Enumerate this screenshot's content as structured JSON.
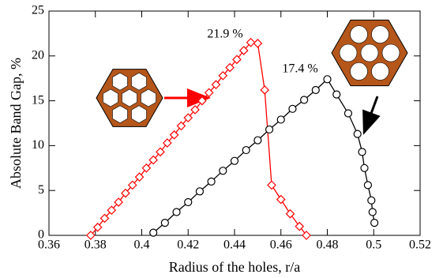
{
  "chart_data": {
    "type": "line",
    "xlabel": "Radius of the holes,  r/a",
    "ylabel": "Absolute Band Gap,  %",
    "xlim": [
      0.36,
      0.52
    ],
    "xticks": [
      0.36,
      0.38,
      0.4,
      0.42,
      0.44,
      0.46,
      0.48,
      0.5,
      0.52
    ],
    "ylim": [
      0,
      25
    ],
    "yticks": [
      0,
      5,
      10,
      15,
      20,
      25
    ],
    "series": [
      {
        "color": "#ff0000",
        "marker": "diamond",
        "x": [
          0.378,
          0.381,
          0.384,
          0.387,
          0.39,
          0.393,
          0.396,
          0.399,
          0.402,
          0.405,
          0.408,
          0.411,
          0.414,
          0.417,
          0.42,
          0.423,
          0.426,
          0.429,
          0.432,
          0.435,
          0.438,
          0.441,
          0.444,
          0.447,
          0.45,
          0.453,
          0.456,
          0.46,
          0.464,
          0.468,
          0.471
        ],
        "values": [
          0,
          0.9,
          1.9,
          2.8,
          3.7,
          4.7,
          5.6,
          6.5,
          7.5,
          8.4,
          9.3,
          10.3,
          11.2,
          12.2,
          13.1,
          14.0,
          15.0,
          15.9,
          16.8,
          17.8,
          18.7,
          19.6,
          20.6,
          21.5,
          21.4,
          16.2,
          5.6,
          4.0,
          2.4,
          1.0,
          0
        ]
      },
      {
        "color": "#000000",
        "marker": "circle",
        "x": [
          0.405,
          0.41,
          0.415,
          0.42,
          0.425,
          0.43,
          0.435,
          0.44,
          0.445,
          0.45,
          0.455,
          0.46,
          0.465,
          0.47,
          0.475,
          0.48,
          0.484,
          0.489,
          0.493,
          0.495,
          0.496,
          0.4975,
          0.499,
          0.4995,
          0.5003
        ],
        "values": [
          0.3,
          1.4,
          2.6,
          3.7,
          4.9,
          6.0,
          7.2,
          8.3,
          9.5,
          10.6,
          11.8,
          12.9,
          14.1,
          15.1,
          16.2,
          17.4,
          15.7,
          13.6,
          11.3,
          9.3,
          7.5,
          5.6,
          3.9,
          2.6,
          1.4
        ]
      }
    ],
    "annotations": [
      {
        "text": "21.9 %",
        "color": "#ff0000"
      },
      {
        "text": "17.4 %",
        "color": "#000000"
      }
    ]
  }
}
